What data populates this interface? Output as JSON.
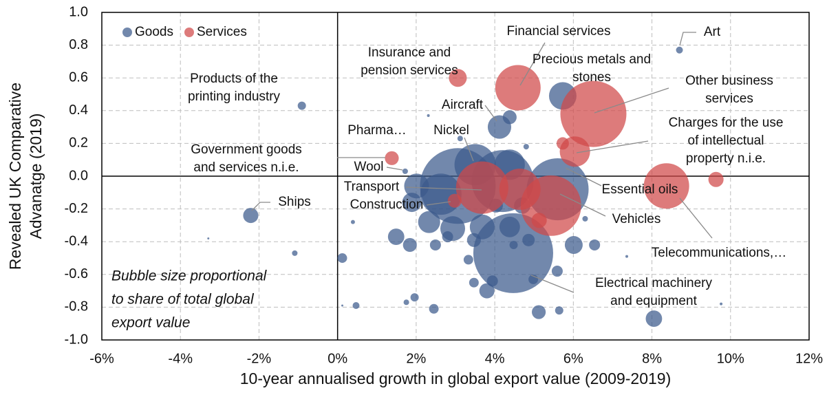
{
  "chart_data": {
    "type": "scatter",
    "xlabel": "10-year annualised growth in global export value (2009-2019)",
    "ylabel": [
      "Revealed UK Comparative",
      "Advanatge (2019)"
    ],
    "note": [
      "Bubble size proportional",
      "to share of total global",
      "export value"
    ],
    "xlim": [
      -6,
      12
    ],
    "xticks": [
      {
        "value": -6,
        "label": "-6%"
      },
      {
        "value": -4,
        "label": "-4%"
      },
      {
        "value": -2,
        "label": "-2%"
      },
      {
        "value": 0,
        "label": "0%"
      },
      {
        "value": 2,
        "label": "2%"
      },
      {
        "value": 4,
        "label": "4%"
      },
      {
        "value": 6,
        "label": "6%"
      },
      {
        "value": 8,
        "label": "8%"
      },
      {
        "value": 10,
        "label": "10%"
      },
      {
        "value": 12,
        "label": "12%"
      }
    ],
    "ylim": [
      -1,
      1
    ],
    "yticks": [
      {
        "value": 1,
        "label": "1.0"
      },
      0.8,
      0.6,
      0.4,
      0.2,
      {
        "value": 0,
        "label": "0.0"
      },
      -0.2,
      -0.4,
      -0.6,
      -0.8,
      {
        "value": -1,
        "label": "-1.0"
      }
    ],
    "grid": true,
    "legend": "upper left",
    "series": [
      {
        "name": "Goods",
        "color": "#3c5a8c",
        "x": [
          8.7,
          -0.91,
          -2.21,
          -1.09,
          -3.29,
          4.12,
          4.38,
          5.73,
          3.5,
          3.12,
          2.31,
          4.8,
          1.72,
          3.06,
          4.2,
          5.6,
          4.38,
          4.47,
          8.05,
          2.63,
          2.01,
          2.93,
          2.33,
          1.49,
          1.84,
          3.8,
          3.94,
          5.12,
          5.59,
          6.01,
          6.54,
          0.12,
          0.47,
          1.96,
          1.75,
          2.45,
          5.64,
          3.47,
          3.68,
          4.38,
          3.33,
          3.47,
          4.48,
          4.98,
          4.86,
          6.3,
          7.36,
          9.76,
          0.39,
          0.12,
          4.03,
          4.7,
          2.49,
          2.8,
          1.89
        ],
        "values": [
          0.77,
          0.43,
          -0.24,
          -0.47,
          -0.38,
          0.3,
          0.36,
          0.49,
          0.07,
          0.23,
          0.37,
          0.18,
          0.03,
          -0.06,
          -0.03,
          -0.08,
          0.07,
          -0.47,
          -0.87,
          -0.11,
          -0.06,
          -0.32,
          -0.28,
          -0.37,
          -0.42,
          -0.7,
          -0.64,
          -0.83,
          -0.58,
          -0.42,
          -0.42,
          -0.5,
          -0.79,
          -0.74,
          -0.77,
          -0.81,
          -0.82,
          -0.39,
          -0.31,
          -0.31,
          -0.51,
          -0.65,
          -0.42,
          -0.63,
          -0.39,
          -0.26,
          -0.49,
          -0.78,
          -0.28,
          -0.79,
          -0.18,
          -0.18,
          -0.42,
          -0.37,
          -0.16
        ],
        "sizes": [
          0.037,
          0.053,
          0.18,
          0.024,
          0.003,
          0.43,
          0.15,
          0.59,
          1.33,
          0.024,
          0.006,
          0.024,
          0.024,
          4.47,
          3.0,
          3.0,
          0.72,
          4.98,
          0.21,
          1.33,
          0.48,
          0.48,
          0.38,
          0.21,
          0.15,
          0.18,
          0.095,
          0.15,
          0.095,
          0.25,
          0.095,
          0.072,
          0.037,
          0.053,
          0.024,
          0.072,
          0.053,
          0.15,
          0.48,
          0.33,
          0.072,
          0.072,
          0.053,
          0.072,
          0.12,
          0.024,
          0.006,
          0.006,
          0.013,
          0.003,
          0.15,
          0.21,
          0.095,
          0.095,
          0.29
        ]
      },
      {
        "name": "Services",
        "color": "#d04848",
        "x": [
          4.59,
          3.06,
          6.51,
          6.04,
          5.73,
          8.37,
          9.63,
          1.38,
          3.68,
          5.43,
          4.64,
          2.98,
          5.13
        ],
        "values": [
          0.54,
          0.6,
          0.38,
          0.15,
          0.2,
          -0.06,
          -0.02,
          0.11,
          -0.07,
          -0.18,
          -0.08,
          -0.15,
          -0.27
        ],
        "sizes": [
          1.61,
          0.25,
          3.41,
          0.72,
          0.12,
          1.61,
          0.18,
          0.15,
          2.14,
          2.86,
          1.33,
          0.15,
          0.18
        ]
      }
    ],
    "annotations": [
      {
        "lines": [
          "Art"
        ]
      },
      {
        "lines": [
          "Financial services"
        ]
      },
      {
        "lines": [
          "Insurance and",
          "pension services"
        ]
      },
      {
        "lines": [
          "Precious metals and",
          "stones"
        ]
      },
      {
        "lines": [
          "Other business",
          "services"
        ]
      },
      {
        "lines": [
          "Charges for the use",
          "of intellectual",
          "property n.i.e."
        ]
      },
      {
        "lines": [
          "Products of the",
          "printing industry"
        ]
      },
      {
        "lines": [
          "Aircraft"
        ]
      },
      {
        "lines": [
          "Pharma…"
        ]
      },
      {
        "lines": [
          "Nickel"
        ]
      },
      {
        "lines": [
          "Government goods",
          "and services n.i.e."
        ]
      },
      {
        "lines": [
          "Wool"
        ]
      },
      {
        "lines": [
          "Transport"
        ]
      },
      {
        "lines": [
          "Construction"
        ]
      },
      {
        "lines": [
          "Ships"
        ]
      },
      {
        "lines": [
          "Essential oils"
        ]
      },
      {
        "lines": [
          "Vehicles"
        ]
      },
      {
        "lines": [
          "Telecommunications,…"
        ]
      },
      {
        "lines": [
          "Electrical machinery",
          "and equipment"
        ]
      }
    ]
  }
}
